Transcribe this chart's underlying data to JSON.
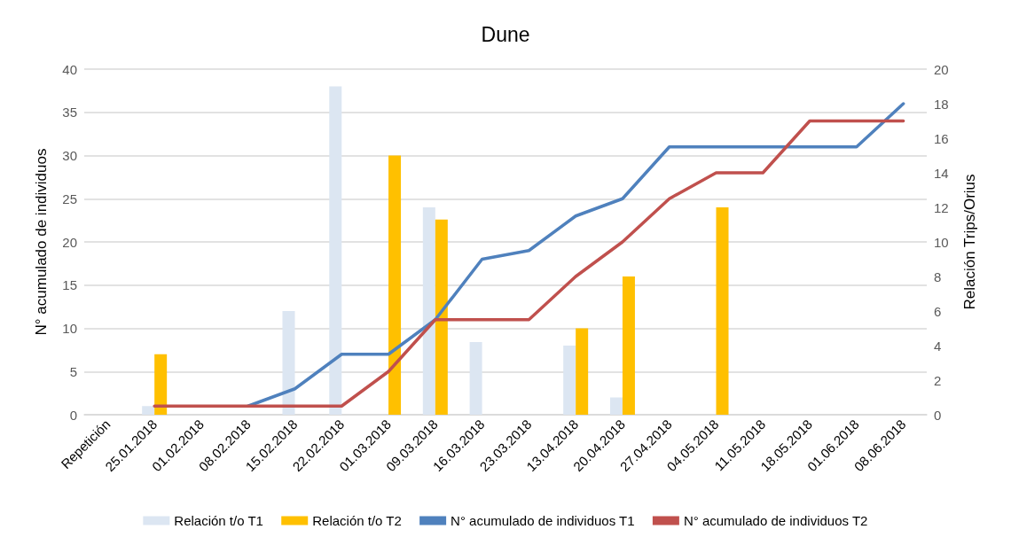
{
  "chart_data": {
    "type": "bar",
    "title": "Dune",
    "ylabel": "N° acumulado de individuos",
    "y2label": "Relación Trips/Orius",
    "categories": [
      "Repetición",
      "25.01.2018",
      "01.02.2018",
      "08.02.2018",
      "15.02.2018",
      "22.02.2018",
      "01.03.2018",
      "09.03.2018",
      "16.03.2018",
      "23.03.2018",
      "13.04.2018",
      "20.04.2018",
      "27.04.2018",
      "04.05.2018",
      "11.05.2018",
      "18.05.2018",
      "01.06.2018",
      "08.06.2018"
    ],
    "series": [
      {
        "name": "Relación t/o T1",
        "axis": "y2",
        "color": "#dce6f2",
        "values": [
          null,
          0.5,
          null,
          null,
          6,
          19,
          null,
          12,
          4.2,
          null,
          4,
          1,
          null,
          null,
          null,
          null,
          null,
          null
        ]
      },
      {
        "name": "Relación t/o T2",
        "axis": "y2",
        "color": "#ffc000",
        "values": [
          null,
          3.5,
          null,
          null,
          null,
          null,
          15,
          11.3,
          null,
          null,
          5,
          8,
          null,
          12,
          null,
          null,
          null,
          null
        ]
      },
      {
        "name": "N° acumulado de individuos T1",
        "type": "line",
        "color": "#4f81bd",
        "values": [
          null,
          null,
          null,
          1,
          3,
          7,
          7,
          11,
          18,
          19,
          23,
          25,
          31,
          31,
          31,
          31,
          31,
          36
        ]
      },
      {
        "name": "N° acumulado de individuos T2",
        "type": "line",
        "color": "#c0504d",
        "values": [
          null,
          1,
          1,
          1,
          1,
          1,
          5,
          11,
          11,
          11,
          16,
          20,
          25,
          28,
          28,
          34,
          34,
          34
        ]
      }
    ],
    "ylim": [
      0,
      40
    ],
    "yticks": [
      0,
      5,
      10,
      15,
      20,
      25,
      30,
      35,
      40
    ],
    "y2lim": [
      0,
      20
    ],
    "y2ticks": [
      0,
      2,
      4,
      6,
      8,
      10,
      12,
      14,
      16,
      18,
      20
    ],
    "grid": "y",
    "legend": "bottom",
    "marker": "none",
    "line_style": "solid"
  }
}
